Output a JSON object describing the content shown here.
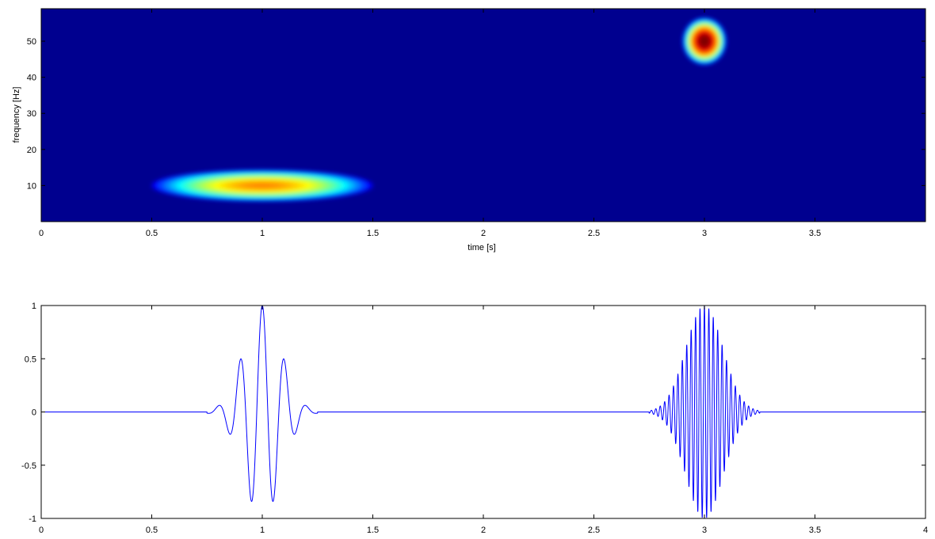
{
  "chart_data": [
    {
      "type": "heatmap",
      "title": "",
      "xlabel": "time [s]",
      "ylabel": "frequency [Hz]",
      "xlim": [
        0,
        4
      ],
      "ylim": [
        0,
        59
      ],
      "xticks": [
        0,
        0.5,
        1,
        1.5,
        2,
        2.5,
        3,
        3.5
      ],
      "xtick_labels": [
        "0",
        "0.5",
        "1",
        "1.5",
        "2",
        "2.5",
        "3",
        "3.5"
      ],
      "yticks": [
        10,
        20,
        30,
        40,
        50
      ],
      "ytick_labels": [
        "10",
        "20",
        "30",
        "40",
        "50"
      ],
      "colormap": "jet",
      "background_color": "#00008f",
      "blobs": [
        {
          "time": 1.0,
          "frequency": 10,
          "time_width": 0.5,
          "frequency_width": 2,
          "peak": 0.72
        },
        {
          "time": 3.0,
          "frequency": 50,
          "time_width": 0.1,
          "frequency_width": 3,
          "peak": 1.0
        }
      ]
    },
    {
      "type": "line",
      "title": "",
      "xlabel": "",
      "ylabel": "",
      "xlim": [
        0,
        4
      ],
      "ylim": [
        -1,
        1
      ],
      "xticks": [
        0,
        0.5,
        1,
        1.5,
        2,
        2.5,
        3,
        3.5,
        4
      ],
      "xtick_labels": [
        "0",
        "0.5",
        "1",
        "1.5",
        "2",
        "2.5",
        "3",
        "3.5",
        "4"
      ],
      "yticks": [
        -1,
        -0.5,
        0,
        0.5,
        1
      ],
      "ytick_labels": [
        "-1",
        "-0.5",
        "0",
        "0.5",
        "1"
      ],
      "line_color": "#0000ff",
      "bursts": [
        {
          "center": 1.0,
          "start": 0.75,
          "end": 1.25,
          "frequency_hz": 10,
          "amplitude": 1.0
        },
        {
          "center": 3.0,
          "start": 2.75,
          "end": 3.25,
          "frequency_hz": 50,
          "amplitude": 1.0
        }
      ]
    }
  ]
}
